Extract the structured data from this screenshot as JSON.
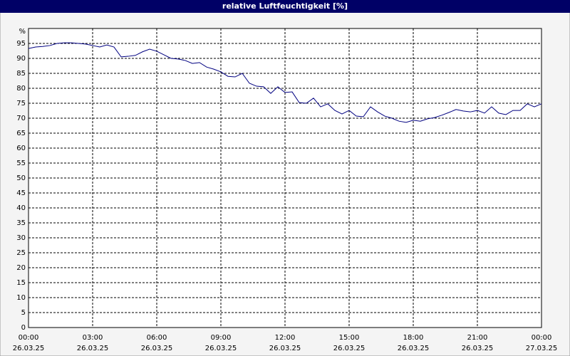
{
  "chart_data": {
    "type": "line",
    "title": "relative Luftfeuchtigkeit [%]",
    "y_label": "%",
    "x": [
      0,
      20,
      40,
      60,
      80,
      100,
      120,
      140,
      160,
      180,
      200,
      220,
      240,
      260,
      280,
      300,
      320,
      340,
      360,
      380,
      400,
      420,
      440,
      460,
      480,
      500,
      520,
      540,
      560,
      580,
      600,
      620,
      640,
      660,
      680,
      700,
      720,
      740,
      760,
      780,
      800,
      820,
      840,
      860,
      880,
      900,
      920,
      940,
      960,
      980,
      1000,
      1020,
      1040,
      1060,
      1080,
      1100,
      1120,
      1140,
      1160,
      1180,
      1200,
      1220,
      1240,
      1260,
      1280,
      1300,
      1320,
      1340,
      1360,
      1380,
      1400,
      1420,
      1440
    ],
    "series": [
      {
        "name": "relative Luftfeuchtigkeit",
        "color": "#000080",
        "values": [
          93.3,
          93.8,
          94,
          94.3,
          95,
          95.2,
          95.2,
          95,
          94.8,
          94.3,
          93.8,
          94.5,
          93.8,
          90.5,
          90.7,
          91,
          92.2,
          93.1,
          92.4,
          91.2,
          90,
          89.8,
          89.3,
          88.3,
          88.6,
          87.1,
          86.4,
          85.5,
          84,
          83.8,
          85,
          81.7,
          80.7,
          80.5,
          78.3,
          80.5,
          78.6,
          78.8,
          75.2,
          75,
          76.7,
          73.8,
          74.8,
          72.6,
          71.4,
          72.6,
          70.7,
          70.5,
          73.8,
          72.1,
          70.7,
          70,
          69,
          68.6,
          69.3,
          69,
          69.8,
          70.2,
          71,
          71.9,
          72.9,
          72.4,
          72.1,
          72.6,
          71.7,
          73.8,
          71.7,
          71.2,
          72.6,
          72.6,
          74.8,
          73.8,
          74.8
        ]
      }
    ],
    "xlim": [
      0,
      1440
    ],
    "xticks": [
      {
        "value": 0,
        "label": "00:00",
        "date": "26.03.25"
      },
      {
        "value": 180,
        "label": "03:00",
        "date": "26.03.25"
      },
      {
        "value": 360,
        "label": "06:00",
        "date": "26.03.25"
      },
      {
        "value": 540,
        "label": "09:00",
        "date": "26.03.25"
      },
      {
        "value": 720,
        "label": "12:00",
        "date": "26.03.25"
      },
      {
        "value": 900,
        "label": "15:00",
        "date": "26.03.25"
      },
      {
        "value": 1080,
        "label": "18:00",
        "date": "26.03.25"
      },
      {
        "value": 1260,
        "label": "21:00",
        "date": "26.03.25"
      },
      {
        "value": 1440,
        "label": "00:00",
        "date": "27.03.25"
      }
    ],
    "ylim": [
      0,
      100
    ],
    "yticks": [
      0,
      5,
      10,
      15,
      20,
      25,
      30,
      35,
      40,
      45,
      50,
      55,
      60,
      65,
      70,
      75,
      80,
      85,
      90,
      95
    ],
    "grid": true
  }
}
